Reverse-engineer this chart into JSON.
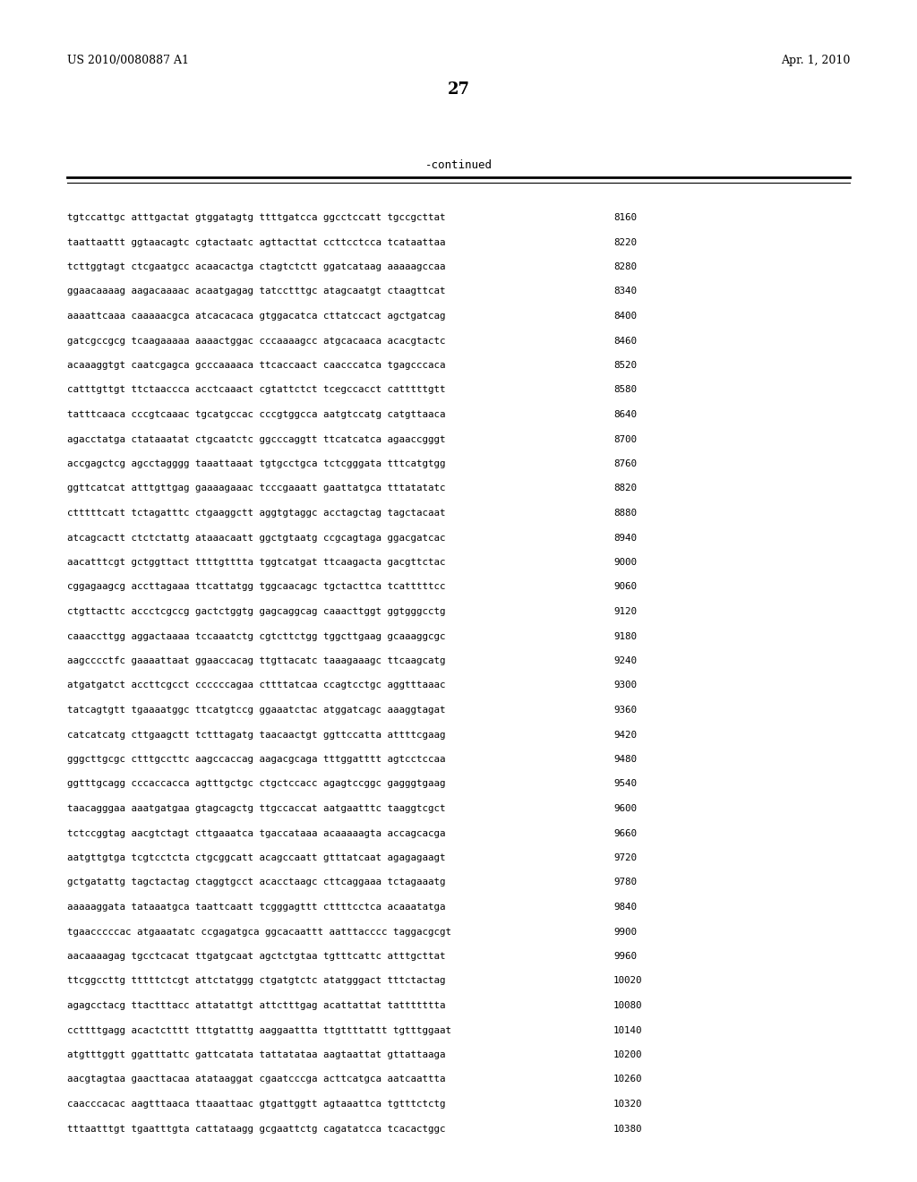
{
  "header_left": "US 2010/0080887 A1",
  "header_right": "Apr. 1, 2010",
  "page_number": "27",
  "continued_label": "-continued",
  "background_color": "#ffffff",
  "text_color": "#000000",
  "sequence_lines": [
    [
      "tgtccattgc atttgactat gtggatagtg ttttgatcca ggcctccatt tgccgcttat",
      "8160"
    ],
    [
      "taattaattt ggtaacagtc cgtactaatc agttacttat ccttcctcca tcataattaa",
      "8220"
    ],
    [
      "tcttggtagt ctcgaatgcc acaacactga ctagtctctt ggatcataag aaaaagccaa",
      "8280"
    ],
    [
      "ggaacaaaag aagacaaaac acaatgagag tatcctttgc atagcaatgt ctaagttcat",
      "8340"
    ],
    [
      "aaaattcaaa caaaaacgca atcacacaca gtggacatca cttatccact agctgatcag",
      "8400"
    ],
    [
      "gatcgccgcg tcaagaaaaa aaaactggac cccaaaagcc atgcacaaca acacgtactc",
      "8460"
    ],
    [
      "acaaaggtgt caatcgagca gcccaaaaca ttcaccaact caacccatca tgagcccaca",
      "8520"
    ],
    [
      "catttgttgt ttctaaccca acctcaaact cgtattctct tcegccacct catttttgtt",
      "8580"
    ],
    [
      "tatttcaaca cccgtcaaac tgcatgccac cccgtggcca aatgtccatg catgttaaca",
      "8640"
    ],
    [
      "agacctatga ctataaatat ctgcaatctc ggcccaggtt ttcatcatca agaaccgggt",
      "8700"
    ],
    [
      "accgagctcg agcctagggg taaattaaat tgtgcctgca tctcgggata tttcatgtgg",
      "8760"
    ],
    [
      "ggttcatcat atttgttgag gaaaagaaac tcccgaaatt gaattatgca tttatatatc",
      "8820"
    ],
    [
      "ctttttcatt tctagatttc ctgaaggctt aggtgtaggc acctagctag tagctacaat",
      "8880"
    ],
    [
      "atcagcactt ctctctattg ataaacaatt ggctgtaatg ccgcagtaga ggacgatcac",
      "8940"
    ],
    [
      "aacatttcgt gctggttact ttttgtttta tggtcatgat ttcaagacta gacgttctac",
      "9000"
    ],
    [
      "cggagaagcg accttagaaa ttcattatgg tggcaacagc tgctacttca tcatttttcc",
      "9060"
    ],
    [
      "ctgttacttc accctcgccg gactctggtg gagcaggcag caaacttggt ggtgggcctg",
      "9120"
    ],
    [
      "caaaccttgg aggactaaaa tccaaatctg cgtcttctgg tggcttgaag gcaaaggcgc",
      "9180"
    ],
    [
      "aagcccctfc gaaaattaat ggaaccacag ttgttacatc taaagaaagc ttcaagcatg",
      "9240"
    ],
    [
      "atgatgatct accttcgcct ccccccagaa cttttatcaa ccagtcctgc aggtttaaac",
      "9300"
    ],
    [
      "tatcagtgtt tgaaaatggc ttcatgtccg ggaaatctac atggatcagc aaaggtagat",
      "9360"
    ],
    [
      "catcatcatg cttgaagctt tctttagatg taacaactgt ggttccatta attttcgaag",
      "9420"
    ],
    [
      "gggcttgcgc ctttgccttc aagccaccag aagacgcaga tttggatttt agtcctccaa",
      "9480"
    ],
    [
      "ggtttgcagg cccaccacca agtttgctgc ctgctccacc agagtccggc gagggtgaag",
      "9540"
    ],
    [
      "taacagggaa aaatgatgaa gtagcagctg ttgccaccat aatgaatttc taaggtcgct",
      "9600"
    ],
    [
      "tctccggtag aacgtctagt cttgaaatca tgaccataaa acaaaaagta accagcacga",
      "9660"
    ],
    [
      "aatgttgtga tcgtcctcta ctgcggcatt acagccaatt gtttatcaat agagagaagt",
      "9720"
    ],
    [
      "gctgatattg tagctactag ctaggtgcct acacctaagc cttcaggaaa tctagaaatg",
      "9780"
    ],
    [
      "aaaaaggata tataaatgca taattcaatt tcgggagttt cttttcctca acaaatatga",
      "9840"
    ],
    [
      "tgaacccccac atgaaatatc ccgagatgca ggcacaattt aatttacccc taggacgcgt",
      "9900"
    ],
    [
      "aacaaaagag tgcctcacat ttgatgcaat agctctgtaa tgtttcattc atttgcttat",
      "9960"
    ],
    [
      "ttcggccttg tttttctcgt attctatggg ctgatgtctc atatgggact tttctactag",
      "10020"
    ],
    [
      "agagcctacg ttactttacc attatattgt attctttgag acattattat tattttttta",
      "10080"
    ],
    [
      "ccttttgagg acactctttt tttgtatttg aaggaattta ttgttttattt tgtttggaat",
      "10140"
    ],
    [
      "atgtttggtt ggatttattc gattcatata tattatataa aagtaattat gttattaaga",
      "10200"
    ],
    [
      "aacgtagtaa gaacttacaa atataaggat cgaatcccga acttcatgca aatcaattta",
      "10260"
    ],
    [
      "caacccacac aagtttaaca ttaaattaac gtgattggtt agtaaattca tgtttctctg",
      "10320"
    ],
    [
      "tttaatttgt tgaatttgta cattataagg gcgaattctg cagatatcca tcacactggc",
      "10380"
    ]
  ]
}
